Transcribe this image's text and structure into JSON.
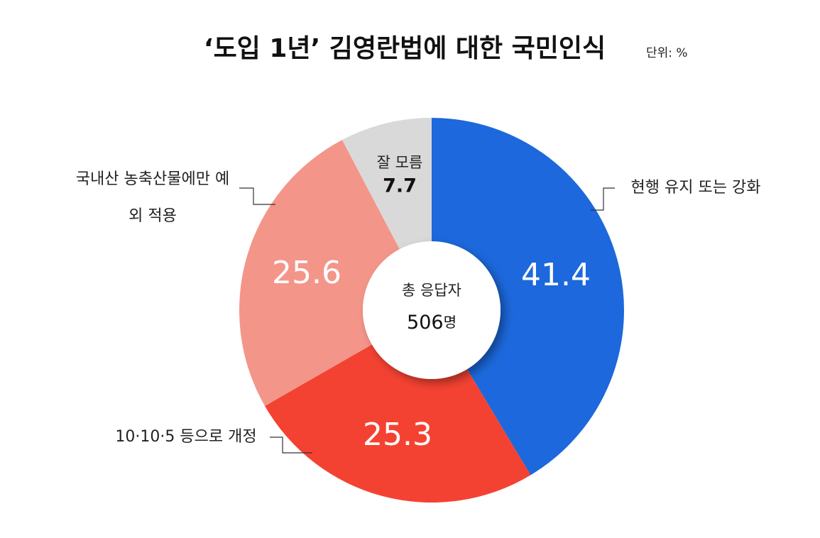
{
  "chart_data": {
    "type": "donut",
    "title": "‘도입 1년’ 김영란법에 대한 국민인식",
    "unit": "단위: %",
    "categories": [
      "현행 유지 또는 강화",
      "10·10·5 등으로 개정",
      "국내산 농축산물에만 예외 적용",
      "잘 모름"
    ],
    "values": [
      41.4,
      25.3,
      25.6,
      7.7
    ],
    "colors": [
      "#1c68dc",
      "#f44232",
      "#f4958a",
      "#d9d9d9"
    ],
    "center_label": "총 응답자",
    "center_count": 506,
    "center_count_unit": "명"
  }
}
